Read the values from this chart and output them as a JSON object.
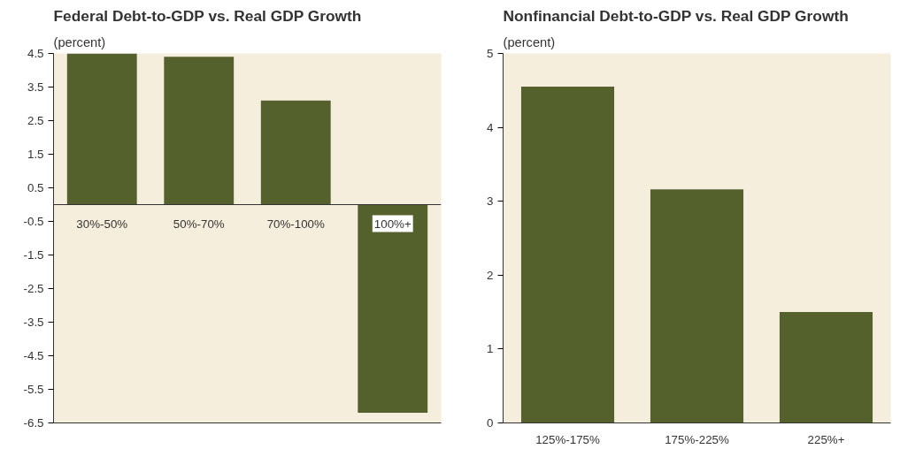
{
  "chart_data": [
    {
      "type": "bar",
      "title": "Federal Debt-to-GDP vs. Real GDP Growth",
      "subtitle": "(percent)",
      "categories": [
        "30%-50%",
        "50%-70%",
        "70%-100%",
        "100%+"
      ],
      "values": [
        4.5,
        4.4,
        3.1,
        -6.2
      ],
      "color": "#55612d",
      "ylim": [
        -6.5,
        4.5
      ],
      "yticks": [
        -6.5,
        -5.5,
        -4.5,
        -3.5,
        -2.5,
        -1.5,
        -0.5,
        0.5,
        1.5,
        2.5,
        3.5,
        4.5
      ]
    },
    {
      "type": "bar",
      "title": "Nonfinancial Debt-to-GDP vs. Real GDP Growth",
      "subtitle": "(percent)",
      "categories": [
        "125%-175%",
        "175%-225%",
        "225%+"
      ],
      "values": [
        4.55,
        3.16,
        1.5
      ],
      "color": "#55612d",
      "ylim": [
        0,
        5
      ],
      "yticks": [
        0,
        1,
        2,
        3,
        4,
        5
      ]
    }
  ]
}
